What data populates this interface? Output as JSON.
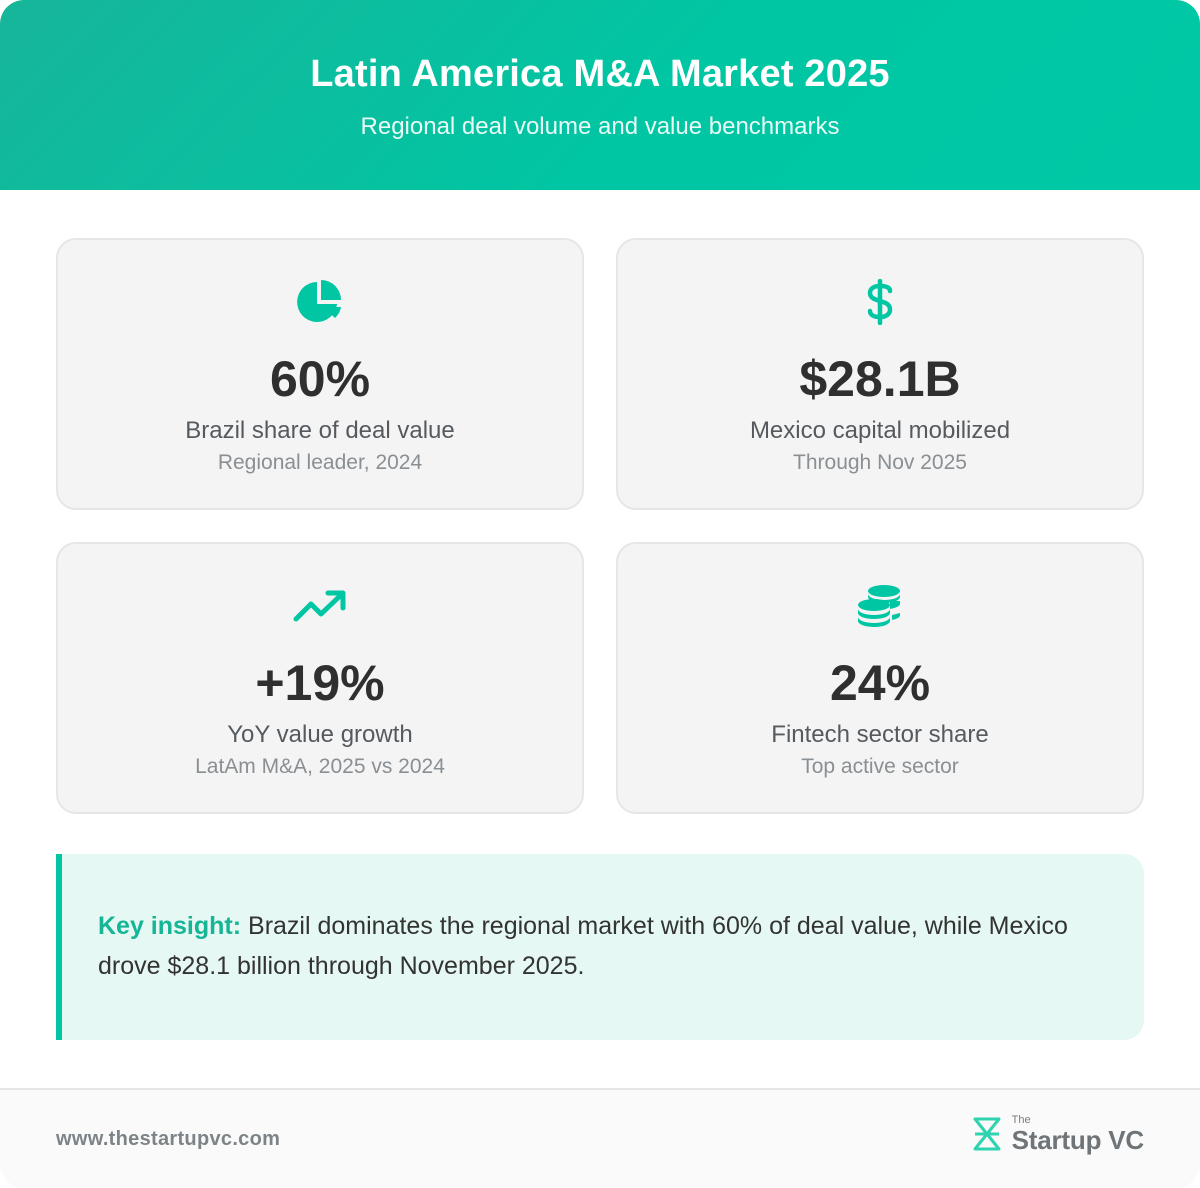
{
  "header": {
    "title": "Latin America M&A Market 2025",
    "subtitle": "Regional deal volume and value benchmarks"
  },
  "colors": {
    "accent": "#00c6a3",
    "accent_dark": "#16b596",
    "card_bg": "#f4f4f4",
    "insight_bg": "#e5f8f3"
  },
  "stats": [
    {
      "icon": "pie-chart-icon",
      "value": "60%",
      "label": "Brazil share of deal value",
      "sub": "Regional leader, 2024"
    },
    {
      "icon": "dollar-sign-icon",
      "value": "$28.1B",
      "label": "Mexico capital mobilized",
      "sub": "Through Nov 2025"
    },
    {
      "icon": "trending-up-icon",
      "value": "+19%",
      "label": "YoY value growth",
      "sub": "LatAm M&A, 2025 vs 2024"
    },
    {
      "icon": "coins-icon",
      "value": "24%",
      "label": "Fintech sector share",
      "sub": "Top active sector"
    }
  ],
  "insight": {
    "lead": "Key insight:",
    "text": " Brazil dominates the regional market with 60% of deal value, while Mexico drove $28.1 billion through November 2025."
  },
  "footer": {
    "url": "www.thestartupvc.com",
    "brand_prefix": "The",
    "brand_name": "Startup VC"
  }
}
